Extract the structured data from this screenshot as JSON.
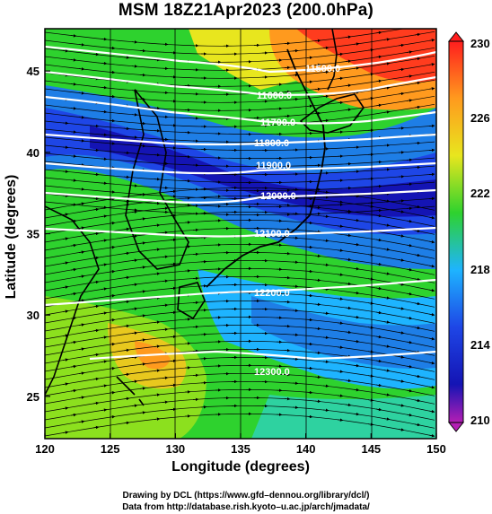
{
  "title": "MSM 18Z21Apr2023 (200.0hPa)",
  "axes": {
    "xlabel": "Longitude (degrees)",
    "ylabel": "Latitude  (degrees)",
    "xticks": [
      "120",
      "125",
      "130",
      "135",
      "140",
      "145",
      "150"
    ],
    "yticks": [
      "25",
      "30",
      "35",
      "40",
      "45"
    ],
    "xrange": [
      120,
      150
    ],
    "yrange": [
      22.4,
      47.6
    ]
  },
  "colorbar": {
    "range": [
      210,
      230
    ],
    "labels": [
      "230",
      "226",
      "222",
      "218",
      "214",
      "210"
    ],
    "colors": [
      "#ff1e1e",
      "#ff9a1e",
      "#e8e61e",
      "#2ed22e",
      "#1eb4ff",
      "#1e46e6",
      "#1414b4",
      "#b41eb4"
    ]
  },
  "contours": {
    "labels": [
      "11600.0",
      "11700.0",
      "11800.0",
      "11900.0",
      "12000.0",
      "12100.0",
      "12200.0",
      "12300.0",
      "11500.0"
    ]
  },
  "credits": {
    "line1": "Drawing by DCL (https://www.gfd–dennou.org/library/dcl/)",
    "line2": "Data from http://database.rish.kyoto–u.ac.jp/arch/jmadata/"
  }
}
